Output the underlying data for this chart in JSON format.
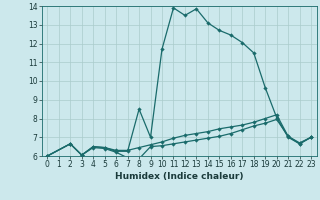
{
  "title": "",
  "xlabel": "Humidex (Indice chaleur)",
  "bg_color": "#cce8ec",
  "grid_color": "#aacccc",
  "line_color": "#1a6b6b",
  "xlim": [
    -0.5,
    23.5
  ],
  "ylim": [
    6,
    14
  ],
  "xticks": [
    0,
    1,
    2,
    3,
    4,
    5,
    6,
    7,
    8,
    9,
    10,
    11,
    12,
    13,
    14,
    15,
    16,
    17,
    18,
    19,
    20,
    21,
    22,
    23
  ],
  "yticks": [
    6,
    7,
    8,
    9,
    10,
    11,
    12,
    13,
    14
  ],
  "line1_x": [
    0,
    2,
    3,
    4,
    5,
    6,
    7,
    8,
    9,
    10,
    11,
    12,
    13,
    14,
    15,
    16,
    17,
    18,
    19,
    20,
    21,
    22,
    23
  ],
  "line1_y": [
    6.0,
    6.65,
    6.05,
    6.5,
    6.45,
    6.25,
    6.25,
    8.5,
    7.0,
    11.7,
    13.9,
    13.5,
    13.85,
    13.1,
    12.7,
    12.45,
    12.05,
    11.5,
    9.65,
    8.05,
    7.0,
    6.65,
    7.0
  ],
  "line2_x": [
    0,
    2,
    3,
    4,
    5,
    6,
    7,
    8,
    9,
    10,
    11,
    12,
    13,
    14,
    15,
    16,
    17,
    18,
    19,
    20,
    21,
    22,
    23
  ],
  "line2_y": [
    6.0,
    6.65,
    6.05,
    6.45,
    6.4,
    6.2,
    5.9,
    5.85,
    6.5,
    6.55,
    6.65,
    6.75,
    6.85,
    6.95,
    7.05,
    7.2,
    7.4,
    7.6,
    7.75,
    7.95,
    7.05,
    6.65,
    7.0
  ],
  "line3_x": [
    0,
    2,
    3,
    4,
    5,
    6,
    7,
    8,
    9,
    10,
    11,
    12,
    13,
    14,
    15,
    16,
    17,
    18,
    19,
    20,
    21,
    22,
    23
  ],
  "line3_y": [
    6.0,
    6.65,
    6.05,
    6.5,
    6.45,
    6.3,
    6.3,
    6.45,
    6.6,
    6.75,
    6.95,
    7.1,
    7.2,
    7.3,
    7.45,
    7.55,
    7.65,
    7.8,
    8.0,
    8.2,
    7.05,
    6.7,
    7.0
  ]
}
